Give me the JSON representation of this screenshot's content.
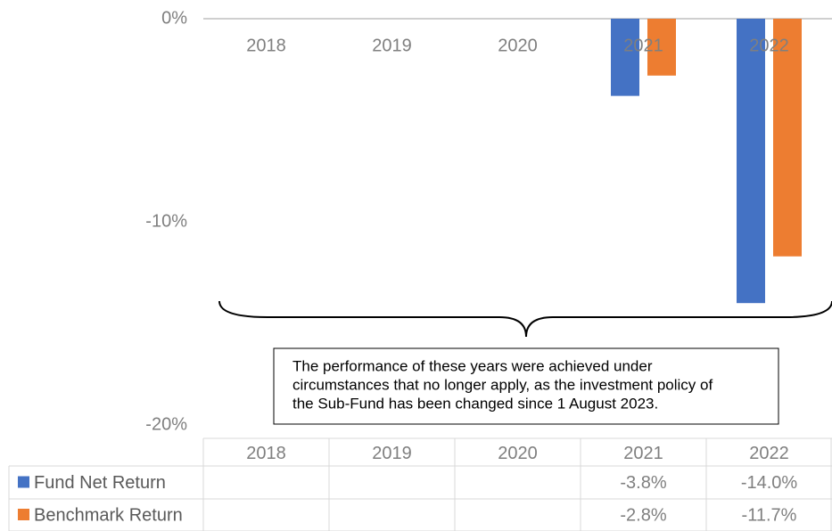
{
  "chart_data": {
    "type": "bar",
    "categories": [
      "2018",
      "2019",
      "2020",
      "2021",
      "2022"
    ],
    "series": [
      {
        "name": "Fund Net Return",
        "color": "#4472c4",
        "values": [
          null,
          null,
          null,
          -3.8,
          -14.0
        ],
        "value_labels": [
          null,
          null,
          null,
          "-3.8%",
          "-14.0%"
        ]
      },
      {
        "name": "Benchmark Return",
        "color": "#ed7d31",
        "values": [
          null,
          null,
          null,
          -2.8,
          -11.7
        ],
        "value_labels": [
          null,
          null,
          null,
          "-2.8%",
          "-11.7%"
        ]
      }
    ],
    "ylim": [
      -20,
      0
    ],
    "yticks": [
      {
        "value": 0,
        "label": "0%"
      },
      {
        "value": -10,
        "label": "-10%"
      },
      {
        "value": -20,
        "label": "-20%"
      }
    ],
    "annotation": [
      "The performance of these years were achieved under",
      "circumstances that no longer apply, as the investment policy of",
      "the Sub-Fund has been changed since 1 August 2023."
    ],
    "data_table": true
  }
}
